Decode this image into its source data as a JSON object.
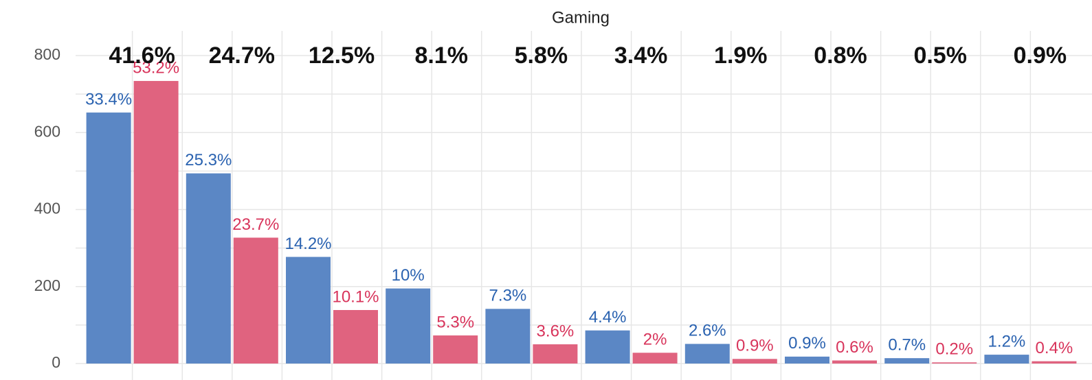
{
  "chart_data": {
    "type": "bar",
    "title": "Gaming",
    "categories": [
      null,
      null,
      null,
      null,
      null,
      null,
      null,
      null,
      null,
      null
    ],
    "group_labels": [
      "41.6%",
      "24.7%",
      "12.5%",
      "8.1%",
      "5.8%",
      "3.4%",
      "1.9%",
      "0.8%",
      "0.5%",
      "0.9%"
    ],
    "series": [
      {
        "color": "#5b87c5",
        "label_color": "#2a62b0",
        "values": [
          652,
          494,
          277,
          195,
          142,
          86,
          51,
          18,
          14,
          23
        ],
        "value_labels": [
          "33.4%",
          "25.3%",
          "14.2%",
          "10%",
          "7.3%",
          "4.4%",
          "2.6%",
          "0.9%",
          "0.7%",
          "1.2%"
        ]
      },
      {
        "color": "#e0637f",
        "label_color": "#d8345b",
        "values": [
          734,
          327,
          139,
          73,
          50,
          28,
          12,
          8,
          3,
          6
        ],
        "value_labels": [
          "53.2%",
          "23.7%",
          "10.1%",
          "5.3%",
          "3.6%",
          "2%",
          "0.9%",
          "0.6%",
          "0.2%",
          "0.4%"
        ]
      }
    ],
    "ylim": [
      0,
      800
    ],
    "yticks": [
      0,
      200,
      400,
      600,
      800
    ],
    "grid": true
  }
}
